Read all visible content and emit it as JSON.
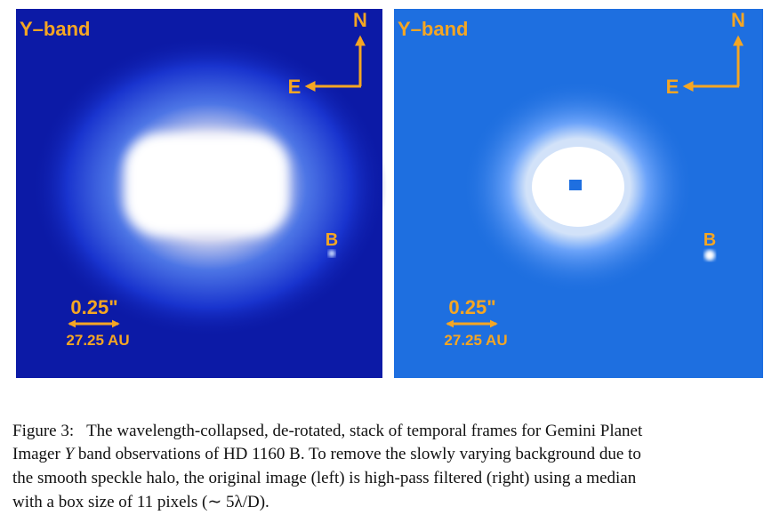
{
  "panels": [
    {
      "band": "Y–band",
      "north": "N",
      "east": "E",
      "companion": "B",
      "scale": "0.25\"",
      "distance": "27.25 AU"
    },
    {
      "band": "Y–band",
      "north": "N",
      "east": "E",
      "companion": "B",
      "scale": "0.25\"",
      "distance": "27.25 AU"
    }
  ],
  "caption": {
    "label": "Figure 3:",
    "line1": "The wavelength-collapsed, de-rotated, stack of temporal frames for Gemini Planet",
    "line2a": "Imager",
    "line2b": "Y",
    "line2c": "band observations of HD 1160 B. To remove the slowly varying background due to",
    "line3": "the smooth speckle halo, the original image (left) is high-pass filtered (right) using a median",
    "line4": "with a box size of 11 pixels (∼ 5λ/D)."
  }
}
